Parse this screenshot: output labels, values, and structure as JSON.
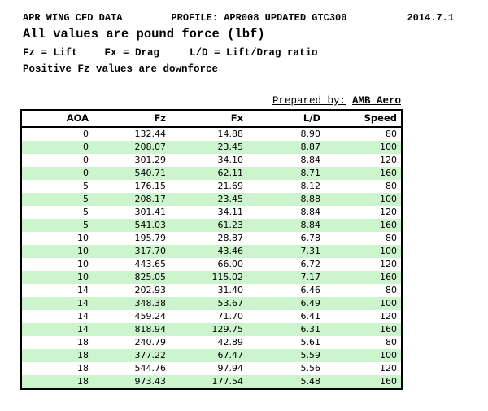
{
  "header": {
    "title": "APR WING CFD DATA",
    "profile": "PROFILE: APR008 UPDATED GTC300",
    "date": "2014.7.1",
    "subtitle": "All values are pound force (lbf)",
    "legend": {
      "fz": "Fz = Lift",
      "fx": "Fx = Drag",
      "ld": "L/D = Lift/Drag ratio"
    },
    "note": "Positive Fz values are downforce"
  },
  "prepared_by": {
    "label": "Prepared by:",
    "value": "AMB Aero"
  },
  "table": {
    "columns": [
      "AOA",
      "Fz",
      "Fx",
      "L/D",
      "Speed"
    ],
    "rows": [
      [
        "0",
        "132.44",
        "14.88",
        "8.90",
        "80"
      ],
      [
        "0",
        "208.07",
        "23.45",
        "8.87",
        "100"
      ],
      [
        "0",
        "301.29",
        "34.10",
        "8.84",
        "120"
      ],
      [
        "0",
        "540.71",
        "62.11",
        "8.71",
        "160"
      ],
      [
        "5",
        "176.15",
        "21.69",
        "8.12",
        "80"
      ],
      [
        "5",
        "208.17",
        "23.45",
        "8.88",
        "100"
      ],
      [
        "5",
        "301.41",
        "34.11",
        "8.84",
        "120"
      ],
      [
        "5",
        "541.03",
        "61.23",
        "8.84",
        "160"
      ],
      [
        "10",
        "195.79",
        "28.87",
        "6.78",
        "80"
      ],
      [
        "10",
        "317.70",
        "43.46",
        "7.31",
        "100"
      ],
      [
        "10",
        "443.65",
        "66.00",
        "6.72",
        "120"
      ],
      [
        "10",
        "825.05",
        "115.02",
        "7.17",
        "160"
      ],
      [
        "14",
        "202.93",
        "31.40",
        "6.46",
        "80"
      ],
      [
        "14",
        "348.38",
        "53.67",
        "6.49",
        "100"
      ],
      [
        "14",
        "459.24",
        "71.70",
        "6.41",
        "120"
      ],
      [
        "14",
        "818.94",
        "129.75",
        "6.31",
        "160"
      ],
      [
        "18",
        "240.79",
        "42.89",
        "5.61",
        "80"
      ],
      [
        "18",
        "377.22",
        "67.47",
        "5.59",
        "100"
      ],
      [
        "18",
        "544.76",
        "97.94",
        "5.56",
        "120"
      ],
      [
        "18",
        "973.43",
        "177.54",
        "5.48",
        "160"
      ]
    ]
  },
  "colors": {
    "row_alt_green": "#cdf5cd",
    "border": "#000000",
    "text": "#000000"
  }
}
